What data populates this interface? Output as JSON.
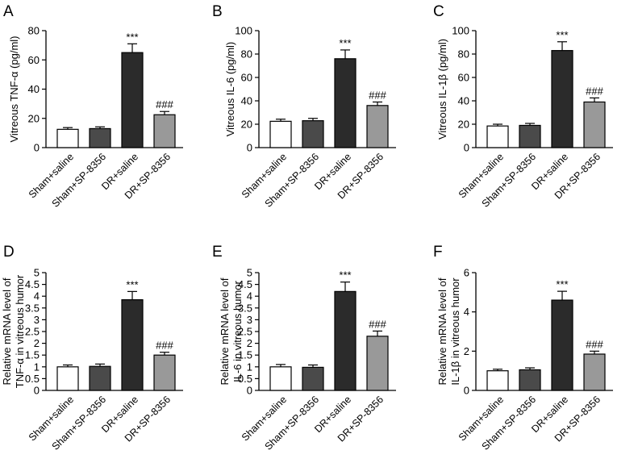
{
  "chart_data": [
    {
      "panel": "A",
      "type": "bar",
      "categories": [
        "Sham+saline",
        "Sham+SP-8356",
        "DR+saline",
        "DR+SP-8356"
      ],
      "values": [
        12.5,
        13,
        65,
        22.5
      ],
      "errors": [
        1.2,
        1.2,
        6,
        2.2
      ],
      "annotations": [
        "",
        "",
        "***",
        "###"
      ],
      "ylabel": "Vitreous TNF-α (pg/ml)",
      "ylim": [
        0,
        80
      ],
      "yticks": [
        0,
        20,
        40,
        60,
        80
      ],
      "colors": [
        "#ffffff",
        "#4a4a4a",
        "#2b2b2b",
        "#999999"
      ]
    },
    {
      "panel": "B",
      "type": "bar",
      "categories": [
        "Sham+saline",
        "Sham+SP-8356",
        "DR+saline",
        "DR+SP-8356"
      ],
      "values": [
        22.5,
        23,
        76,
        36
      ],
      "errors": [
        1.8,
        2,
        7.5,
        3
      ],
      "annotations": [
        "",
        "",
        "***",
        "###"
      ],
      "ylabel": "Vitreous IL-6 (pg/ml)",
      "ylim": [
        0,
        100
      ],
      "yticks": [
        0,
        20,
        40,
        60,
        80,
        100
      ],
      "colors": [
        "#ffffff",
        "#4a4a4a",
        "#2b2b2b",
        "#999999"
      ]
    },
    {
      "panel": "C",
      "type": "bar",
      "categories": [
        "Sham+saline",
        "Sham+SP-8356",
        "DR+saline",
        "DR+SP-8356"
      ],
      "values": [
        18.5,
        19,
        83,
        39
      ],
      "errors": [
        1.5,
        1.7,
        7.5,
        3.5
      ],
      "annotations": [
        "",
        "",
        "***",
        "###"
      ],
      "ylabel": "Vitreous IL-1β (pg/ml)",
      "ylim": [
        0,
        100
      ],
      "yticks": [
        0,
        20,
        40,
        60,
        80,
        100
      ],
      "colors": [
        "#ffffff",
        "#4a4a4a",
        "#2b2b2b",
        "#999999"
      ]
    },
    {
      "panel": "D",
      "type": "bar",
      "categories": [
        "Sham+saline",
        "Sham+SP-8356",
        "DR+saline",
        "DR+SP-8356"
      ],
      "values": [
        1.0,
        1.02,
        3.85,
        1.5
      ],
      "errors": [
        0.08,
        0.1,
        0.35,
        0.12
      ],
      "annotations": [
        "",
        "",
        "***",
        "###"
      ],
      "ylabel_lines": [
        "Relative mRNA level of",
        "TNF-α in vitreous humor"
      ],
      "ylim": [
        0,
        5
      ],
      "yticks": [
        0,
        0.5,
        1,
        1.5,
        2,
        2.5,
        3,
        3.5,
        4,
        4.5,
        5
      ],
      "ytick_labels": [
        "0",
        "0.5",
        "1",
        "1.5",
        "2",
        "2.5",
        "3",
        "3.5",
        "4",
        "4.5",
        "5"
      ],
      "colors": [
        "#ffffff",
        "#4a4a4a",
        "#2b2b2b",
        "#999999"
      ]
    },
    {
      "panel": "E",
      "type": "bar",
      "categories": [
        "Sham+saline",
        "Sham+SP-8356",
        "DR+saline",
        "DR+SP-8356"
      ],
      "values": [
        1.0,
        0.98,
        4.2,
        2.3
      ],
      "errors": [
        0.1,
        0.1,
        0.4,
        0.22
      ],
      "annotations": [
        "",
        "",
        "***",
        "###"
      ],
      "ylabel_lines": [
        "Relative mRNA level of",
        "IL-6 in vitreous humor"
      ],
      "ylim": [
        0,
        5
      ],
      "yticks": [
        0,
        0.5,
        1,
        1.5,
        2,
        2.5,
        3,
        3.5,
        4,
        4.5,
        5
      ],
      "ytick_labels": [
        "0",
        "0.5",
        "1",
        "1.5",
        "2",
        "2.5",
        "3",
        "3.5",
        "4",
        "4.5",
        "5"
      ],
      "colors": [
        "#ffffff",
        "#4a4a4a",
        "#2b2b2b",
        "#999999"
      ]
    },
    {
      "panel": "F",
      "type": "bar",
      "categories": [
        "Sham+saline",
        "Sham+SP-8356",
        "DR+saline",
        "DR+SP-8356"
      ],
      "values": [
        1.0,
        1.05,
        4.6,
        1.85
      ],
      "errors": [
        0.08,
        0.1,
        0.45,
        0.15
      ],
      "annotations": [
        "",
        "",
        "***",
        "###"
      ],
      "ylabel_lines": [
        "Relative mRNA level of",
        "IL-1β in vitreous humor"
      ],
      "ylim": [
        0,
        6
      ],
      "yticks": [
        0,
        2,
        4,
        6
      ],
      "ytick_labels": [
        "0",
        "2",
        "4",
        "6"
      ],
      "colors": [
        "#ffffff",
        "#4a4a4a",
        "#2b2b2b",
        "#999999"
      ]
    }
  ]
}
